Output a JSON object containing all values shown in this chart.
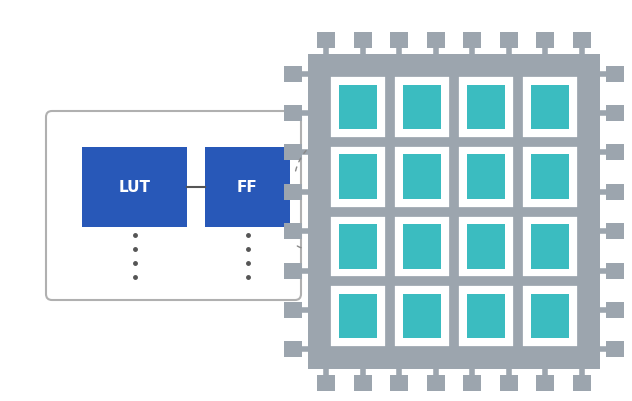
{
  "bg_color": "#ffffff",
  "lut_color": "#2858b8",
  "ff_color": "#2858b8",
  "teal_color": "#3bbcc0",
  "gray_color": "#9ca5ae",
  "box_outline": "#b0b0b0",
  "lut_label": "LUT",
  "ff_label": "FF",
  "grid_rows": 4,
  "grid_cols": 4,
  "figsize": [
    6.32,
    4.02
  ],
  "dpi": 100
}
